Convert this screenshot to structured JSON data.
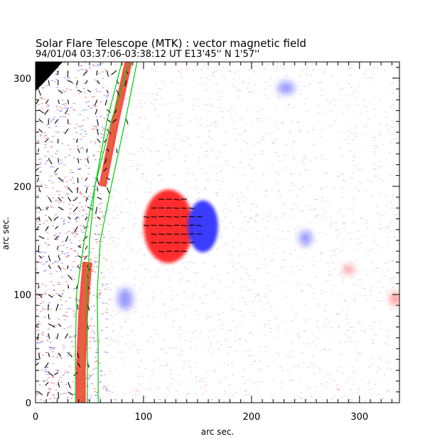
{
  "chart_data": {
    "type": "heatmap",
    "title": "Solar Flare Telescope (MTK) : vector magnetic field",
    "subtitle": "94/01/04  03:37:06-03:38:12 UT     E13'45''  N 1'57''",
    "xlabel": "arc sec.",
    "ylabel": "arc sec.",
    "xlim": [
      0,
      337
    ],
    "ylim": [
      0,
      315
    ],
    "x_ticks": [
      0,
      100,
      200,
      300
    ],
    "y_ticks": [
      0,
      100,
      200,
      300
    ],
    "colormap": {
      "positive_polarity": "#ff2020",
      "negative_polarity": "#3333ff",
      "background": "#ffffff",
      "limb_dark": "#000000",
      "contour": "#00cc00"
    },
    "features": [
      {
        "name": "sunspot-positive",
        "polarity": "positive",
        "cx": 123,
        "cy": 163,
        "rx": 23,
        "ry": 34
      },
      {
        "name": "sunspot-negative",
        "polarity": "negative",
        "cx": 155,
        "cy": 163,
        "rx": 14,
        "ry": 24
      },
      {
        "name": "plage-negative-1",
        "polarity": "negative",
        "cx": 232,
        "cy": 291,
        "rx": 8,
        "ry": 6
      },
      {
        "name": "plage-negative-2",
        "polarity": "negative",
        "cx": 83,
        "cy": 96,
        "rx": 7,
        "ry": 10
      },
      {
        "name": "plage-positive-1",
        "polarity": "positive",
        "cx": 333,
        "cy": 96,
        "rx": 5,
        "ry": 6
      },
      {
        "name": "plage-positive-2",
        "polarity": "positive",
        "cx": 290,
        "cy": 123,
        "rx": 5,
        "ry": 4
      },
      {
        "name": "plage-negative-3",
        "polarity": "negative",
        "cx": 250,
        "cy": 152,
        "rx": 6,
        "ry": 7
      }
    ],
    "limb_contours": [
      {
        "name": "contour-outer",
        "points": [
          [
            94,
            315
          ],
          [
            83,
            260
          ],
          [
            70,
            200
          ],
          [
            60,
            150
          ],
          [
            57,
            100
          ],
          [
            58,
            50
          ],
          [
            58,
            0
          ]
        ]
      },
      {
        "name": "contour-inner",
        "points": [
          [
            87,
            315
          ],
          [
            70,
            260
          ],
          [
            55,
            200
          ],
          [
            45,
            150
          ],
          [
            38,
            100
          ],
          [
            37,
            50
          ],
          [
            37,
            0
          ]
        ]
      },
      {
        "name": "contour-mid",
        "points": [
          [
            80,
            315
          ],
          [
            66,
            260
          ],
          [
            55,
            200
          ],
          [
            50,
            150
          ],
          [
            48,
            100
          ],
          [
            48,
            50
          ],
          [
            48,
            0
          ]
        ]
      }
    ],
    "limb_bands": [
      {
        "name": "band-red-upper",
        "points": [
          [
            86,
            315
          ],
          [
            74,
            260
          ],
          [
            62,
            200
          ]
        ],
        "width": 7
      },
      {
        "name": "band-red-lower",
        "points": [
          [
            48,
            130
          ],
          [
            44,
            80
          ],
          [
            42,
            30
          ],
          [
            42,
            0
          ]
        ],
        "width": 9
      }
    ],
    "vector_field": {
      "region": "transverse field arrows",
      "color": "#000000"
    }
  }
}
